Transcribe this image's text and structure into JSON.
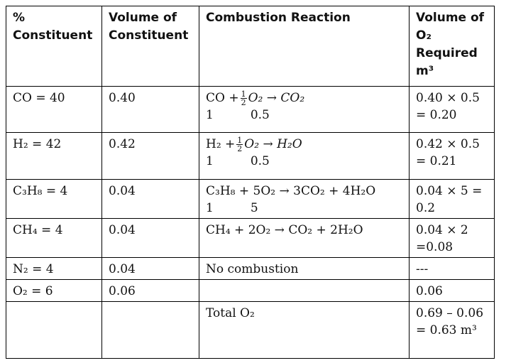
{
  "headers": {
    "constituent": "% Constituent",
    "volume": "Volume of Constituent",
    "reaction": "Combustion Reaction",
    "o2": "Volume of O₂ Required m³"
  },
  "rows": [
    {
      "constituent": "CO = 40",
      "volume": "0.40",
      "reaction_lhs": "CO +",
      "reaction_frac_num": "1",
      "reaction_frac_den": "2",
      "reaction_rhs": "O₂ → CO₂",
      "ratio_a": "1",
      "ratio_b": "0.5",
      "o2_line1": "0.40 × 0.5",
      "o2_line2": "= 0.20"
    },
    {
      "constituent": "H₂ = 42",
      "volume": "0.42",
      "reaction_lhs": "H₂ +",
      "reaction_frac_num": "1",
      "reaction_frac_den": "2",
      "reaction_rhs": "O₂ → H₂O",
      "ratio_a": "1",
      "ratio_b": "0.5",
      "o2_line1": "0.42 × 0.5",
      "o2_line2": "= 0.21"
    },
    {
      "constituent": "C₃H₈ = 4",
      "volume": "0.04",
      "reaction": "C₃H₈ + 5O₂ → 3CO₂ + 4H₂O",
      "ratio_a": "1",
      "ratio_b": "5",
      "o2_line1": "0.04 × 5 =",
      "o2_line2": "0.2"
    },
    {
      "constituent": "CH₄ = 4",
      "volume": "0.04",
      "reaction": "CH₄ + 2O₂ → CO₂ + 2H₂O",
      "o2_line1": "0.04 × 2",
      "o2_line2": "=0.08"
    },
    {
      "constituent": "N₂ = 4",
      "volume": "0.04",
      "reaction": "No combustion",
      "o2_line1": "---"
    },
    {
      "constituent": "O₂ = 6",
      "volume": "0.06",
      "reaction": "",
      "o2_line1": "0.06"
    },
    {
      "constituent": "",
      "volume": "",
      "reaction": "Total O₂",
      "o2_line1": "0.69 – 0.06",
      "o2_line2": "= 0.63 m³"
    }
  ]
}
